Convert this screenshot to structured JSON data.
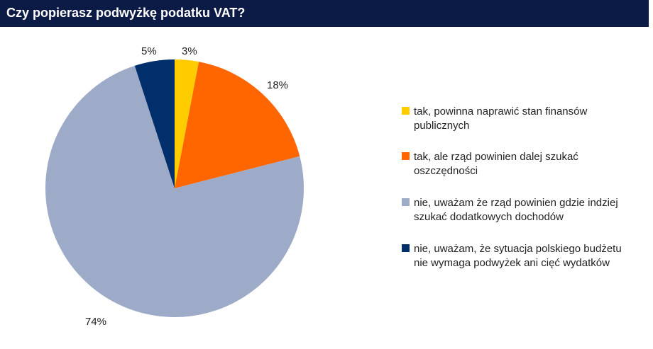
{
  "title": "Czy popierasz podwyżkę podatku VAT?",
  "chart_data": {
    "type": "pie",
    "categories": [
      "tak, powinna naprawić stan finansów publicznych",
      "tak, ale rząd powinien dalej szukać oszczędności",
      "nie, uważam że rząd powinien gdzie indziej szukać dodatkowych dochodów",
      "nie, uważam, że sytuacja polskiego budżetu nie wymaga podwyżek ani cięć wydatków"
    ],
    "values": [
      3,
      18,
      74,
      5
    ],
    "data_labels": [
      "3%",
      "18%",
      "74%",
      "5%"
    ],
    "colors": [
      "#ffcc00",
      "#ff6600",
      "#9dabc9",
      "#002f6c"
    ],
    "legend_placement": "right"
  }
}
